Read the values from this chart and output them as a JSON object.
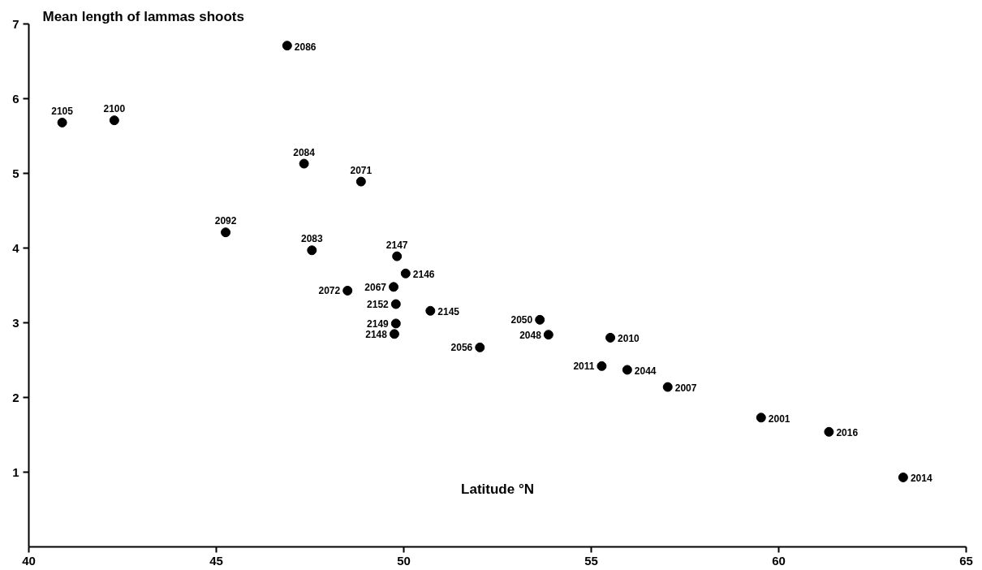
{
  "chart_data": {
    "type": "scatter",
    "title": "Mean length of lammas shoots",
    "xlabel": "Latitude °N",
    "x": [
      40.89,
      42.28,
      45.25,
      46.89,
      47.34,
      48.86,
      47.55,
      49.82,
      50.05,
      49.73,
      48.5,
      49.79,
      50.71,
      49.79,
      49.75,
      52.03,
      53.63,
      53.86,
      55.51,
      55.28,
      55.96,
      57.04,
      59.53,
      61.34,
      63.32
    ],
    "series": [
      {
        "color": "#000000",
        "values": [
          5.68,
          5.71,
          4.21,
          6.71,
          5.13,
          4.89,
          3.97,
          3.89,
          3.66,
          3.48,
          3.43,
          3.25,
          3.16,
          2.99,
          2.85,
          2.67,
          3.04,
          2.84,
          2.8,
          2.42,
          2.37,
          2.14,
          1.73,
          1.54,
          0.93
        ]
      }
    ],
    "annotations": [
      {
        "text": "2105",
        "x": 40.89,
        "y": 5.68
      },
      {
        "text": "2100",
        "x": 42.28,
        "y": 5.71
      },
      {
        "text": "2092",
        "x": 45.25,
        "y": 4.21
      },
      {
        "text": "2086",
        "x": 46.89,
        "y": 6.71
      },
      {
        "text": "2084",
        "x": 47.34,
        "y": 5.13
      },
      {
        "text": "2071",
        "x": 48.86,
        "y": 4.89
      },
      {
        "text": "2083",
        "x": 47.55,
        "y": 3.97
      },
      {
        "text": "2147",
        "x": 49.82,
        "y": 3.89
      },
      {
        "text": "2146",
        "x": 50.05,
        "y": 3.66
      },
      {
        "text": "2067",
        "x": 49.73,
        "y": 3.48
      },
      {
        "text": "2072",
        "x": 48.5,
        "y": 3.43
      },
      {
        "text": "2152",
        "x": 49.79,
        "y": 3.25
      },
      {
        "text": "2145",
        "x": 50.71,
        "y": 3.16
      },
      {
        "text": "2149",
        "x": 49.79,
        "y": 2.99
      },
      {
        "text": "2148",
        "x": 49.75,
        "y": 2.85
      },
      {
        "text": "2056",
        "x": 52.03,
        "y": 2.67
      },
      {
        "text": "2050",
        "x": 53.63,
        "y": 3.04
      },
      {
        "text": "2048",
        "x": 53.86,
        "y": 2.84
      },
      {
        "text": "2010",
        "x": 55.51,
        "y": 2.8
      },
      {
        "text": "2011",
        "x": 55.28,
        "y": 2.42
      },
      {
        "text": "2044",
        "x": 55.96,
        "y": 2.37
      },
      {
        "text": "2007",
        "x": 57.04,
        "y": 2.14
      },
      {
        "text": "2001",
        "x": 59.53,
        "y": 1.73
      },
      {
        "text": "2016",
        "x": 61.34,
        "y": 1.54
      },
      {
        "text": "2014",
        "x": 63.32,
        "y": 0.93
      }
    ],
    "xlim": [
      40,
      65
    ],
    "ylim": [
      0,
      7
    ],
    "xticks": [
      40,
      45,
      50,
      55,
      60,
      65
    ],
    "yticks": [
      1,
      2,
      3,
      4,
      5,
      6,
      7
    ],
    "marker": "circle",
    "grid": false
  }
}
